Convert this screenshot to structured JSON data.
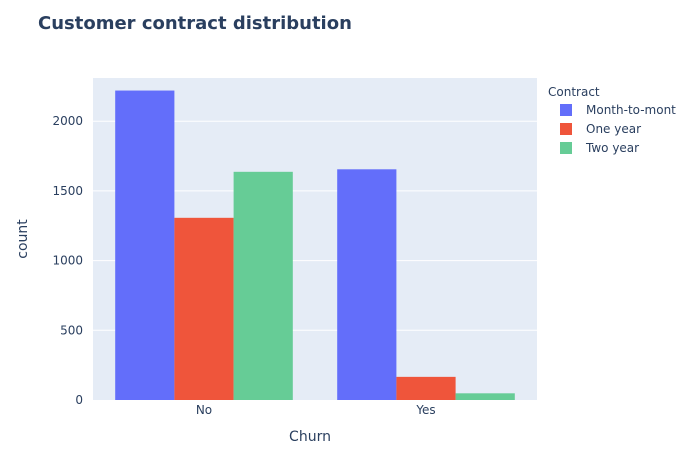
{
  "chart_data": {
    "type": "bar",
    "barmode": "group",
    "title": "Customer contract distribution",
    "xlabel": "Churn",
    "ylabel": "count",
    "categories": [
      "No",
      "Yes"
    ],
    "ylim": [
      0,
      2310
    ],
    "yticks": [
      0,
      500,
      1000,
      1500,
      2000
    ],
    "grid": true,
    "legend_title": "Contract",
    "legend_position": "top-right",
    "series": [
      {
        "name": "Month-to-month",
        "legend_label": "Month-to-mont",
        "color": "#636efa",
        "values": [
          2220,
          1655
        ]
      },
      {
        "name": "One year",
        "legend_label": "One year",
        "color": "#ef553b",
        "values": [
          1307,
          166
        ]
      },
      {
        "name": "Two year",
        "legend_label": "Two year",
        "color": "#66cc96",
        "values": [
          1637,
          48
        ]
      }
    ],
    "colors": {
      "plot_bg": "#e5ecf6",
      "grid": "#ffffff",
      "text": "#2a3f5f"
    }
  }
}
